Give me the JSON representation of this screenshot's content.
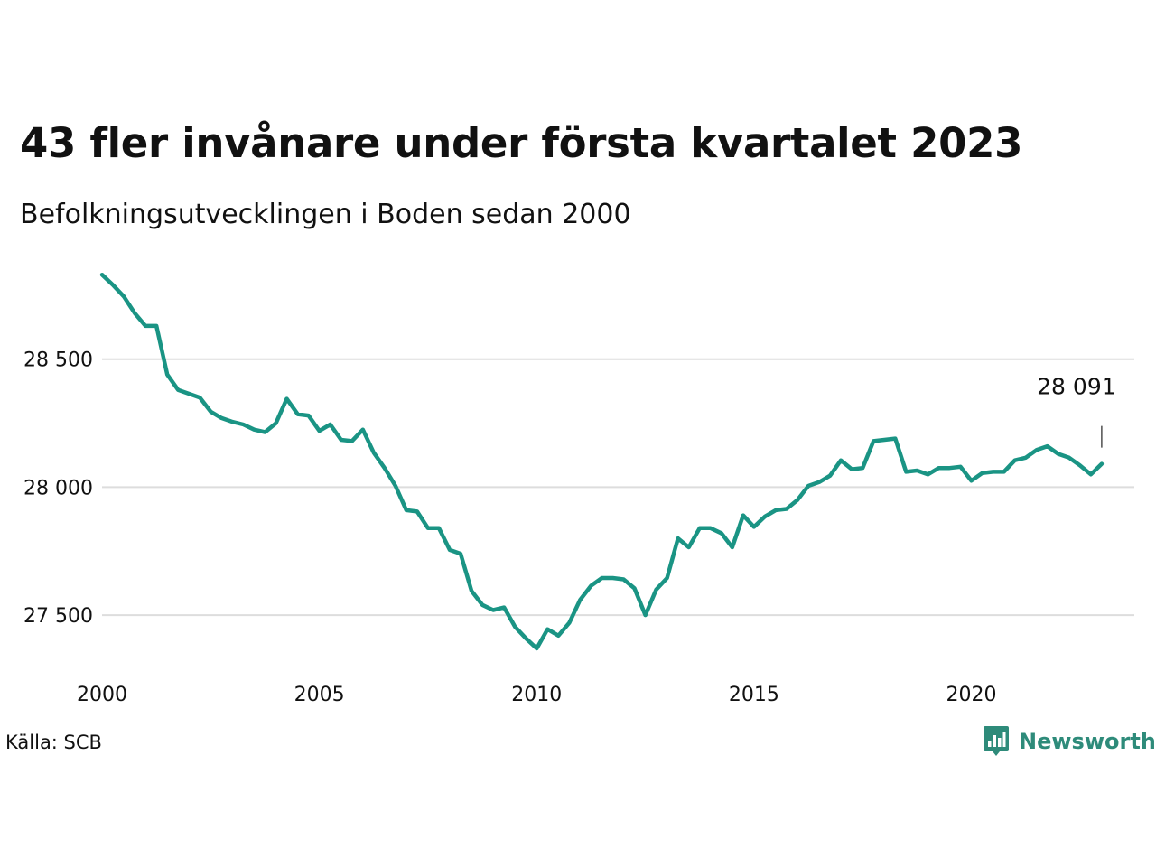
{
  "chart_data": {
    "type": "line",
    "title": "43 fler invånare under första kvartalet 2023",
    "subtitle": "Befolkningsutvecklingen i Boden sedan 2000",
    "source": "Källa: SCB",
    "brand": "Newsworthy",
    "line_color": "#1a9484",
    "grid": true,
    "xlim": [
      2000,
      2023.75
    ],
    "ylim": [
      27310,
      28880
    ],
    "x_ticks": [
      2000,
      2005,
      2010,
      2015,
      2020
    ],
    "y_ticks": [
      27500,
      28000,
      28500
    ],
    "y_tick_labels": [
      "27 500",
      "28 000",
      "28 500"
    ],
    "end_label": "28 091",
    "series": [
      {
        "x": [
          2000,
          2000.25,
          2000.5,
          2000.75,
          2001,
          2001.25,
          2001.5,
          2001.75,
          2002,
          2002.25,
          2002.5,
          2002.75,
          2003,
          2003.25,
          2003.5,
          2003.75,
          2004,
          2004.25,
          2004.5,
          2004.75,
          2005,
          2005.25,
          2005.5,
          2005.75,
          2006,
          2006.25,
          2006.5,
          2006.75,
          2007,
          2007.25,
          2007.5,
          2007.75,
          2008,
          2008.25,
          2008.5,
          2008.75,
          2009,
          2009.25,
          2009.5,
          2009.75,
          2010,
          2010.25,
          2010.5,
          2010.75,
          2011,
          2011.25,
          2011.5,
          2011.75,
          2012,
          2012.25,
          2012.5,
          2012.75,
          2013,
          2013.25,
          2013.5,
          2013.75,
          2014,
          2014.25,
          2014.5,
          2014.75,
          2015,
          2015.25,
          2015.5,
          2015.75,
          2016,
          2016.25,
          2016.5,
          2016.75,
          2017,
          2017.25,
          2017.5,
          2017.75,
          2018,
          2018.25,
          2018.5,
          2018.75,
          2019,
          2019.25,
          2019.5,
          2019.75,
          2020,
          2020.25,
          2020.5,
          2020.75,
          2021,
          2021.25,
          2021.5,
          2021.75,
          2022,
          2022.25,
          2022.5,
          2022.75,
          2023
        ],
        "values": [
          28830,
          28790,
          28745,
          28680,
          28630,
          28630,
          28440,
          28380,
          28365,
          28350,
          28295,
          28270,
          28255,
          28245,
          28225,
          28215,
          28250,
          28345,
          28285,
          28280,
          28220,
          28245,
          28185,
          28180,
          28225,
          28135,
          28075,
          28005,
          27910,
          27905,
          27840,
          27840,
          27755,
          27740,
          27595,
          27540,
          27520,
          27530,
          27455,
          27410,
          27370,
          27445,
          27420,
          27470,
          27560,
          27615,
          27645,
          27645,
          27640,
          27605,
          27500,
          27600,
          27645,
          27800,
          27765,
          27840,
          27840,
          27820,
          27765,
          27890,
          27845,
          27885,
          27910,
          27915,
          27950,
          28005,
          28020,
          28045,
          28105,
          28070,
          28075,
          28180,
          28185,
          28190,
          28060,
          28065,
          28050,
          28075,
          28075,
          28080,
          28025,
          28055,
          28060,
          28060,
          28105,
          28115,
          28145,
          28160,
          28130,
          28115,
          28085,
          28050,
          28091
        ]
      }
    ]
  }
}
